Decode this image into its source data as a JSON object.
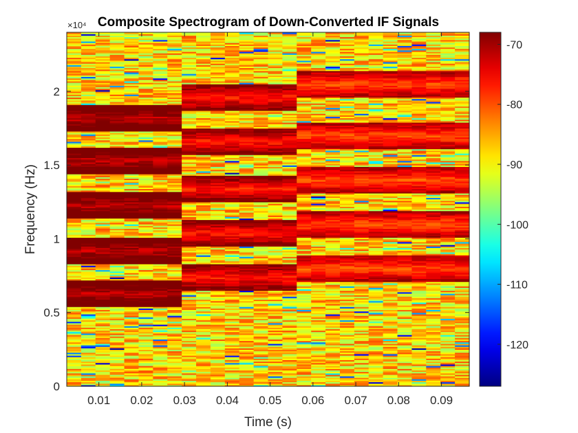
{
  "chart_data": {
    "type": "heatmap",
    "title": "Composite Spectrogram of Down-Converted IF Signals",
    "xlabel": "Time (s)",
    "ylabel": "Frequency (Hz)",
    "y_exponent_label": "×10⁴",
    "xlim": [
      0.0025,
      0.0965
    ],
    "ylim": [
      0,
      24000
    ],
    "x_ticks": [
      0.01,
      0.02,
      0.03,
      0.04,
      0.05,
      0.06,
      0.07,
      0.08,
      0.09
    ],
    "x_tick_labels": [
      "0.01",
      "0.02",
      "0.03",
      "0.04",
      "0.05",
      "0.06",
      "0.07",
      "0.08",
      "0.09"
    ],
    "y_ticks": [
      0,
      5000,
      10000,
      15000,
      20000
    ],
    "y_tick_labels": [
      "0",
      "0.5",
      "1",
      "1.5",
      "2"
    ],
    "colormap": "jet",
    "colorbar": {
      "clim": [
        -127,
        -68
      ],
      "ticks": [
        -70,
        -80,
        -90,
        -100,
        -110,
        -120
      ],
      "tick_labels": [
        "-70",
        "-80",
        "-90",
        "-100",
        "-110",
        "-120"
      ]
    },
    "grid": {
      "time_bins": 28,
      "freq_bins": 240,
      "background_level_db": -88,
      "noise_spread_db": 5
    },
    "tone_groups": [
      {
        "t_start": 0.0025,
        "t_end": 0.03,
        "level_db": -72,
        "freqs_hz": [
          6300,
          9200,
          12300,
          15300,
          18200
        ]
      },
      {
        "t_start": 0.03,
        "t_end": 0.056,
        "level_db": -77,
        "freqs_hz": [
          7400,
          10400,
          13400,
          16600,
          19600
        ]
      },
      {
        "t_start": 0.056,
        "t_end": 0.0965,
        "level_db": -80,
        "freqs_hz": [
          8000,
          11000,
          14000,
          17000,
          20500
        ]
      }
    ]
  }
}
